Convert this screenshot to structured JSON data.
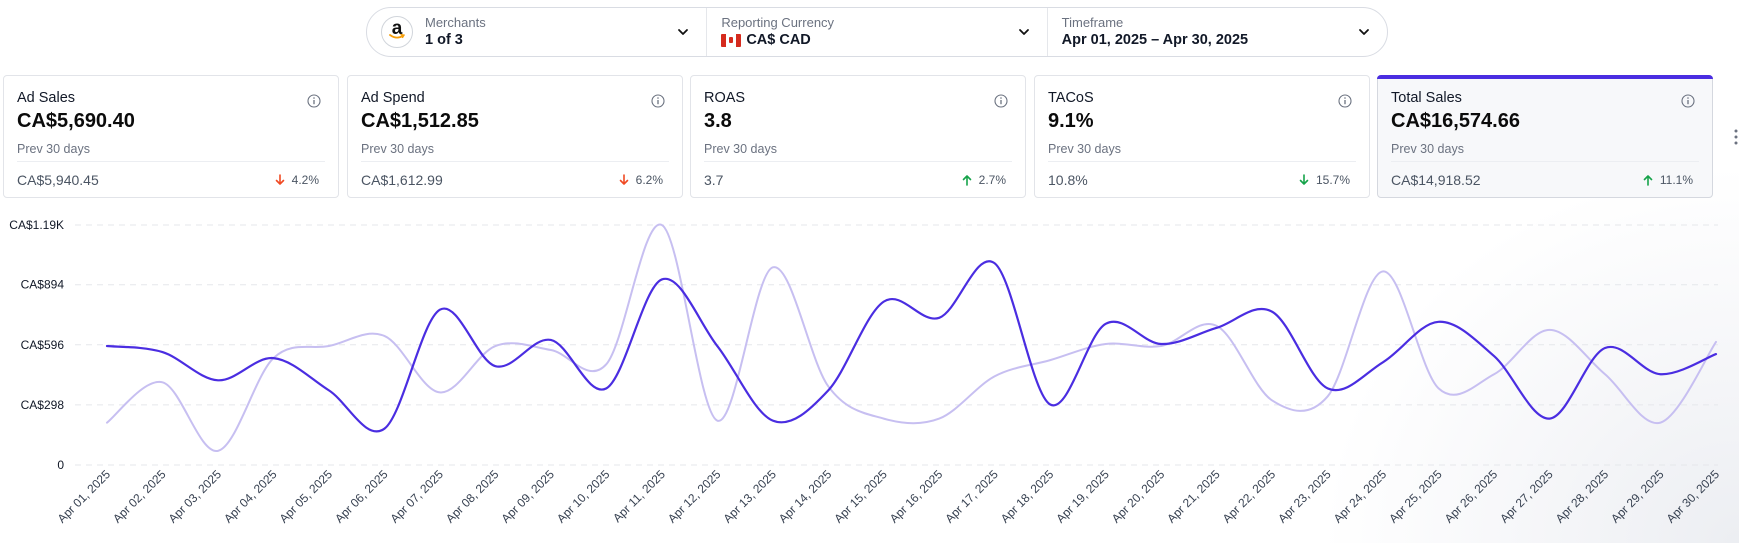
{
  "filters": {
    "merchants": {
      "label": "Merchants",
      "value": "1 of 3",
      "icon": "amazon-logo-icon"
    },
    "currency": {
      "label": "Reporting Currency",
      "value": "CA$ CAD",
      "icon": "canada-flag-icon"
    },
    "timeframe": {
      "label": "Timeframe",
      "value": "Apr 01, 2025 – Apr 30, 2025"
    }
  },
  "kpis": [
    {
      "title": "Ad Sales",
      "value": "CA$5,690.40",
      "prev_label": "Prev 30 days",
      "prev_value": "CA$5,940.45",
      "change": "4.2%",
      "direction": "down",
      "color": "#f04a23"
    },
    {
      "title": "Ad Spend",
      "value": "CA$1,512.85",
      "prev_label": "Prev 30 days",
      "prev_value": "CA$1,612.99",
      "change": "6.2%",
      "direction": "down",
      "color": "#f04a23"
    },
    {
      "title": "ROAS",
      "value": "3.8",
      "prev_label": "Prev 30 days",
      "prev_value": "3.7",
      "change": "2.7%",
      "direction": "up",
      "color": "#16a34a"
    },
    {
      "title": "TACoS",
      "value": "9.1%",
      "prev_label": "Prev 30 days",
      "prev_value": "10.8%",
      "change": "15.7%",
      "direction": "down",
      "color": "#16a34a"
    },
    {
      "title": "Total Sales",
      "value": "CA$16,574.66",
      "prev_label": "Prev 30 days",
      "prev_value": "CA$14,918.52",
      "change": "11.1%",
      "direction": "up",
      "color": "#16a34a",
      "selected": true
    }
  ],
  "colors": {
    "accent": "#4a2de1",
    "secondary_line": "#c7bff1"
  },
  "chart_data": {
    "type": "line",
    "x": [
      "Apr 01, 2025",
      "Apr 02, 2025",
      "Apr 03, 2025",
      "Apr 04, 2025",
      "Apr 05, 2025",
      "Apr 06, 2025",
      "Apr 07, 2025",
      "Apr 08, 2025",
      "Apr 09, 2025",
      "Apr 10, 2025",
      "Apr 11, 2025",
      "Apr 12, 2025",
      "Apr 13, 2025",
      "Apr 14, 2025",
      "Apr 15, 2025",
      "Apr 16, 2025",
      "Apr 17, 2025",
      "Apr 18, 2025",
      "Apr 19, 2025",
      "Apr 20, 2025",
      "Apr 21, 2025",
      "Apr 22, 2025",
      "Apr 23, 2025",
      "Apr 24, 2025",
      "Apr 25, 2025",
      "Apr 26, 2025",
      "Apr 27, 2025",
      "Apr 28, 2025",
      "Apr 29, 2025",
      "Apr 30, 2025"
    ],
    "series": [
      {
        "color": "#4a2de1",
        "values": [
          590,
          560,
          420,
          530,
          370,
          180,
          770,
          490,
          620,
          380,
          920,
          590,
          220,
          370,
          810,
          730,
          1000,
          300,
          700,
          600,
          680,
          760,
          380,
          510,
          710,
          540,
          230,
          580,
          450,
          550
        ]
      },
      {
        "color": "#c7bff1",
        "values": [
          210,
          410,
          70,
          530,
          590,
          640,
          360,
          590,
          570,
          500,
          1190,
          220,
          980,
          390,
          230,
          230,
          440,
          520,
          600,
          590,
          690,
          320,
          340,
          960,
          380,
          450,
          670,
          450,
          210,
          610
        ]
      }
    ],
    "yticks": [
      "0",
      "CA$298",
      "CA$596",
      "CA$894",
      "CA$1.19K"
    ],
    "ytick_values": [
      0,
      298,
      596,
      894,
      1190
    ],
    "ylim": [
      0,
      1190
    ],
    "grid": true,
    "legend": "none"
  }
}
